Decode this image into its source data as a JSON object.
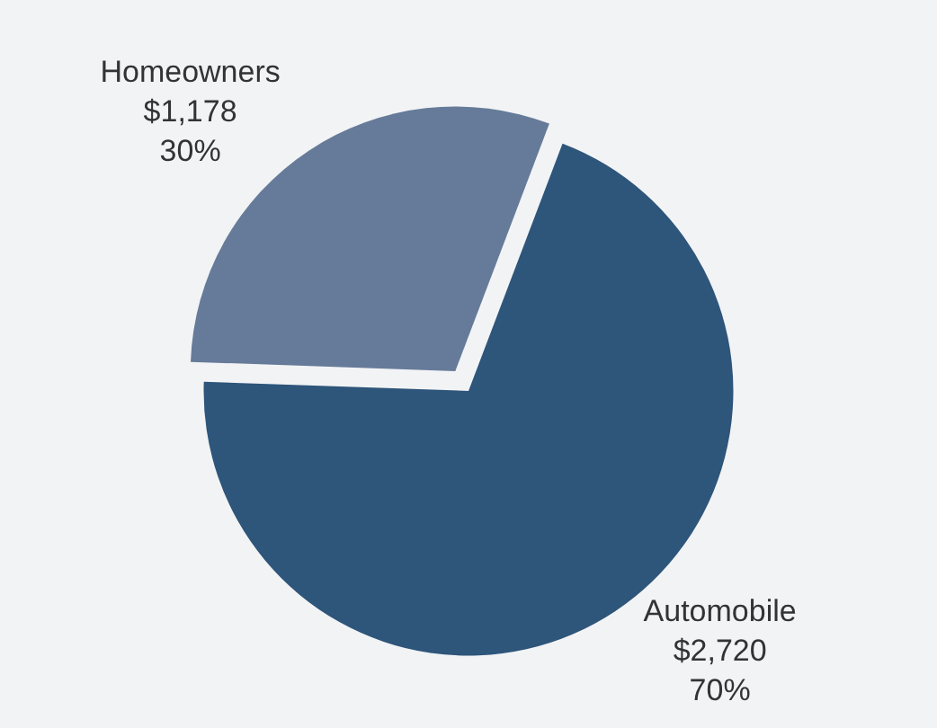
{
  "chart_data": {
    "type": "pie",
    "categories": [
      "Homeowners",
      "Automobile"
    ],
    "values": [
      1178,
      2720
    ],
    "value_labels": [
      "$1,178\n30%",
      "$2,720\n70%"
    ],
    "colors": [
      "#667b99",
      "#2e557a"
    ]
  }
}
